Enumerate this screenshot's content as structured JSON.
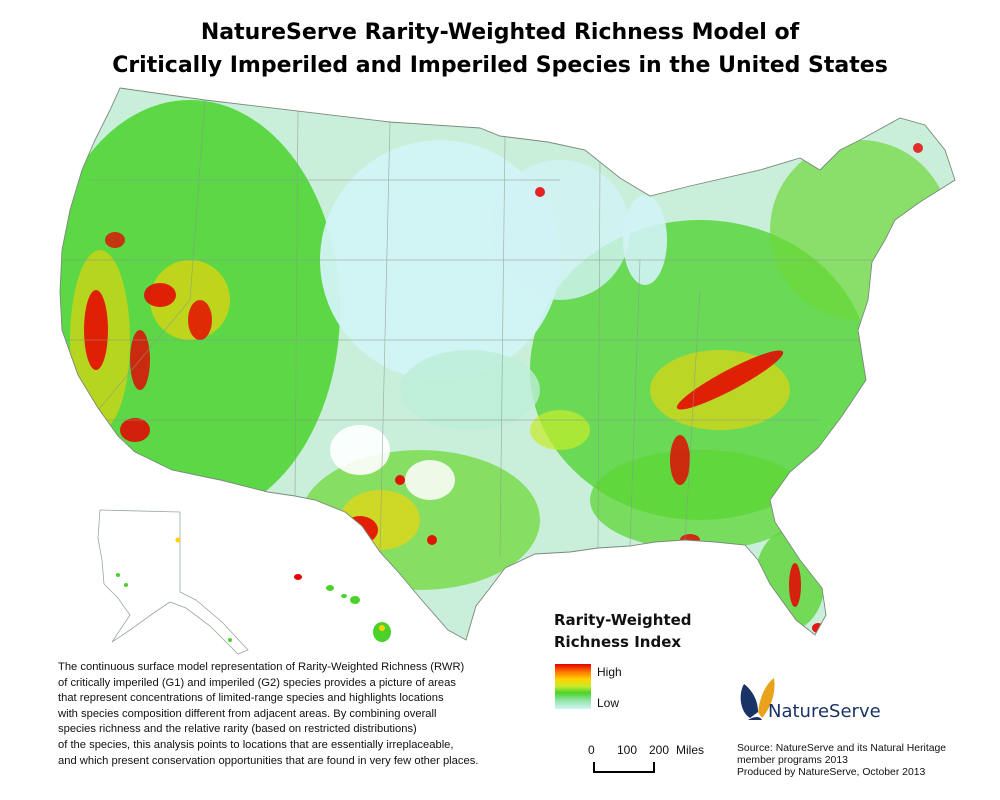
{
  "title": {
    "line1": "NatureServe Rarity-Weighted Richness Model of",
    "line2": "Critically Imperiled and Imperiled Species in the United States"
  },
  "legend": {
    "title_line1": "Rarity-Weighted",
    "title_line2": "Richness Index",
    "high": "High",
    "low": "Low",
    "colors": [
      "#e60000",
      "#ff7a00",
      "#ffd400",
      "#c6ec2a",
      "#49d22a",
      "#8fe3a2",
      "#d2f3f6"
    ]
  },
  "description": {
    "lines": [
      "The continuous surface model representation of Rarity-Weighted Richness (RWR)",
      "of critically imperiled (G1) and imperiled (G2) species provides a picture of areas",
      "that represent concentrations of limited-range species and highlights locations",
      "with species composition different from adjacent areas. By combining overall",
      "species richness and the relative rarity (based on restricted distributions)",
      "of the species, this analysis points to locations that are essentially irreplaceable,",
      "and which present conservation opportunities that are found in very few other places."
    ]
  },
  "scale": {
    "zero": "0",
    "mid": "100",
    "max": "200",
    "unit": "Miles"
  },
  "logo": {
    "name": "NatureServe",
    "icon": "butterfly-icon",
    "color": "#1a3366"
  },
  "source": {
    "lines": [
      "Source: NatureServe and its Natural Heritage",
      "member programs 2013",
      "Produced by NatureServe, October 2013"
    ]
  },
  "colors": {
    "low": "#d2f3f6",
    "mid_low": "#8fe3a2",
    "green": "#49d22a",
    "yellow_green": "#c6ec2a",
    "yellow": "#ffd400",
    "orange": "#ff7a00",
    "high": "#e60000",
    "boundary": "#8c9a8c"
  }
}
